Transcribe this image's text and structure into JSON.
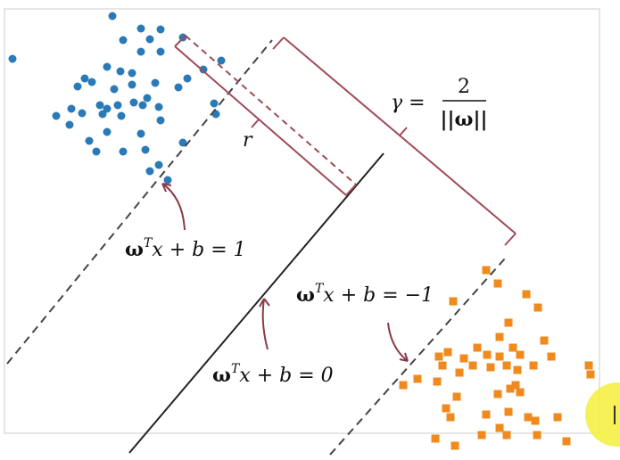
{
  "margin": {
    "symbol": "γ",
    "equals": "=",
    "numerator": "2",
    "denominator": "||ω||"
  },
  "half_margin": "r",
  "upper_boundary": {
    "w": "ω",
    "sup": "T",
    "rest": "x + b = 1"
  },
  "decision_boundary": {
    "w": "ω",
    "sup": "T",
    "rest": "x + b = 0"
  },
  "lower_boundary": {
    "w": "ω",
    "sup": "T",
    "rest": "x + b = −1"
  }
}
